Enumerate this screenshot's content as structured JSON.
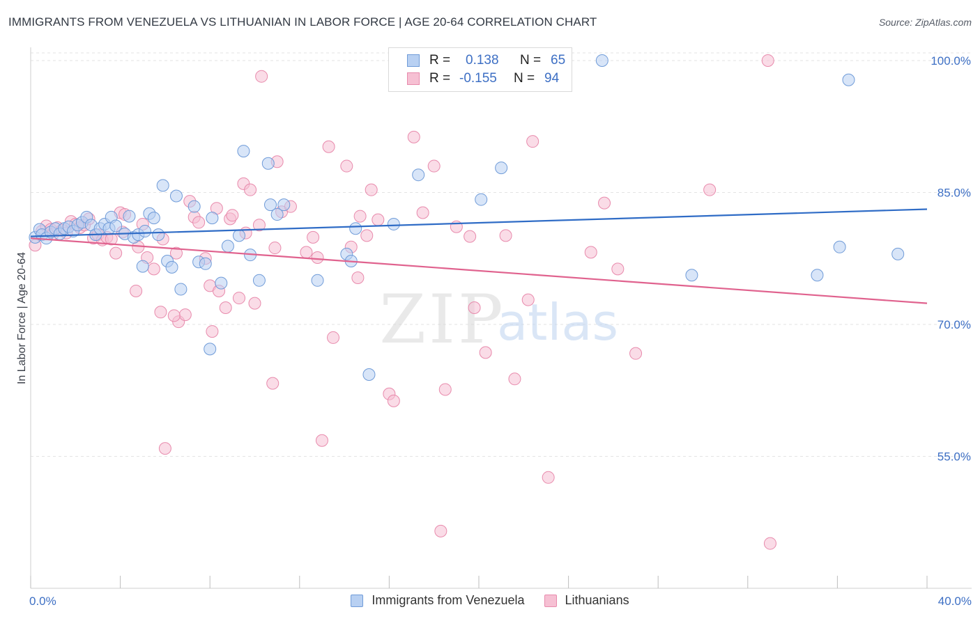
{
  "header": {
    "title": "IMMIGRANTS FROM VENEZUELA VS LITHUANIAN IN LABOR FORCE | AGE 20-64 CORRELATION CHART",
    "source": "Source: ZipAtlas.com"
  },
  "watermark": {
    "zip": "ZIP",
    "atlas": "atlas"
  },
  "legend": {
    "rows": [
      {
        "r_label": "R =",
        "r_value": "0.138",
        "n_label": "N =",
        "n_value": "65"
      },
      {
        "r_label": "R =",
        "r_value": "-0.155",
        "n_label": "N =",
        "n_value": "94"
      }
    ]
  },
  "colors": {
    "blue_fill": "#b8d0f2",
    "blue_stroke": "#6f9bd8",
    "blue_line": "#2f6cc6",
    "pink_fill": "#f6c0d3",
    "pink_stroke": "#e88aac",
    "pink_line": "#e0628e",
    "tick_text": "#3d6fc4",
    "grid": "#e3e3e3"
  },
  "chart_data": {
    "type": "scatter",
    "title": "IMMIGRANTS FROM VENEZUELA VS LITHUANIAN IN LABOR FORCE | AGE 20-64 CORRELATION CHART",
    "xlabel": "",
    "ylabel": "In Labor Force | Age 20-64",
    "xlim": [
      0,
      40
    ],
    "ylim": [
      40,
      101.5
    ],
    "x_ticks": [
      0,
      4,
      8,
      12,
      16,
      20,
      24,
      28,
      32,
      36,
      40
    ],
    "x_tick_labels": [
      {
        "value": 0,
        "label": "0.0%"
      },
      {
        "value": 40,
        "label": "40.0%"
      }
    ],
    "y_ticks": [
      {
        "value": 100,
        "label": "100.0%"
      },
      {
        "value": 85,
        "label": "85.0%"
      },
      {
        "value": 70,
        "label": "70.0%"
      },
      {
        "value": 55,
        "label": "55.0%"
      }
    ],
    "grid": true,
    "legend_position": "top-center",
    "series": [
      {
        "name": "Immigrants from Venezuela",
        "color": "#b8d0f2",
        "trend": {
          "x": [
            0,
            40
          ],
          "y": [
            80.0,
            83.1
          ]
        },
        "points": [
          [
            0.2,
            79.9
          ],
          [
            0.4,
            80.8
          ],
          [
            0.5,
            80.2
          ],
          [
            0.7,
            79.8
          ],
          [
            0.9,
            80.5
          ],
          [
            1.1,
            80.9
          ],
          [
            1.3,
            80.3
          ],
          [
            1.5,
            80.9
          ],
          [
            1.7,
            81.1
          ],
          [
            1.9,
            80.6
          ],
          [
            2.1,
            81.3
          ],
          [
            2.3,
            81.6
          ],
          [
            2.5,
            82.2
          ],
          [
            2.7,
            81.3
          ],
          [
            2.9,
            80.2
          ],
          [
            3.1,
            80.9
          ],
          [
            3.3,
            81.4
          ],
          [
            3.5,
            80.9
          ],
          [
            3.6,
            82.2
          ],
          [
            3.8,
            81.2
          ],
          [
            4.2,
            80.3
          ],
          [
            4.4,
            82.3
          ],
          [
            4.6,
            79.9
          ],
          [
            4.8,
            80.2
          ],
          [
            5.0,
            76.6
          ],
          [
            5.1,
            80.6
          ],
          [
            5.3,
            82.6
          ],
          [
            5.5,
            82.1
          ],
          [
            5.7,
            80.2
          ],
          [
            5.9,
            85.8
          ],
          [
            6.1,
            77.2
          ],
          [
            6.3,
            76.5
          ],
          [
            6.5,
            84.6
          ],
          [
            6.7,
            74.0
          ],
          [
            7.3,
            83.4
          ],
          [
            7.5,
            77.1
          ],
          [
            7.8,
            76.9
          ],
          [
            8.0,
            67.2
          ],
          [
            8.1,
            82.1
          ],
          [
            8.5,
            74.7
          ],
          [
            8.8,
            78.9
          ],
          [
            9.3,
            80.1
          ],
          [
            9.5,
            89.7
          ],
          [
            9.8,
            77.9
          ],
          [
            10.2,
            75.0
          ],
          [
            10.6,
            88.3
          ],
          [
            10.7,
            83.6
          ],
          [
            11.0,
            82.5
          ],
          [
            11.3,
            83.6
          ],
          [
            12.8,
            75.0
          ],
          [
            14.1,
            78.0
          ],
          [
            14.3,
            77.2
          ],
          [
            14.5,
            80.9
          ],
          [
            15.1,
            64.3
          ],
          [
            16.2,
            81.4
          ],
          [
            17.3,
            87.0
          ],
          [
            18.2,
            99.4
          ],
          [
            20.1,
            84.2
          ],
          [
            21.0,
            87.8
          ],
          [
            25.5,
            100.0
          ],
          [
            29.5,
            75.6
          ],
          [
            35.1,
            75.6
          ],
          [
            36.1,
            78.8
          ],
          [
            36.5,
            97.8
          ],
          [
            38.7,
            78.0
          ]
        ]
      },
      {
        "name": "Lithuanians",
        "color": "#f6c0d3",
        "trend": {
          "x": [
            0,
            40
          ],
          "y": [
            79.8,
            72.4
          ]
        },
        "points": [
          [
            0.2,
            79.0
          ],
          [
            0.5,
            80.6
          ],
          [
            0.7,
            81.2
          ],
          [
            0.9,
            80.8
          ],
          [
            1.0,
            80.3
          ],
          [
            1.2,
            81.0
          ],
          [
            1.4,
            80.7
          ],
          [
            1.6,
            80.4
          ],
          [
            1.8,
            81.7
          ],
          [
            2.0,
            81.4
          ],
          [
            2.2,
            81.0
          ],
          [
            2.4,
            81.3
          ],
          [
            2.6,
            82.0
          ],
          [
            2.8,
            79.8
          ],
          [
            3.0,
            80.2
          ],
          [
            3.2,
            79.6
          ],
          [
            3.4,
            79.9
          ],
          [
            3.6,
            79.7
          ],
          [
            3.8,
            78.1
          ],
          [
            4.0,
            82.7
          ],
          [
            4.2,
            82.5
          ],
          [
            4.7,
            73.8
          ],
          [
            4.8,
            78.8
          ],
          [
            5.0,
            81.4
          ],
          [
            5.2,
            77.6
          ],
          [
            5.5,
            76.3
          ],
          [
            5.8,
            71.4
          ],
          [
            5.9,
            79.7
          ],
          [
            6.0,
            55.9
          ],
          [
            6.5,
            78.1
          ],
          [
            6.6,
            70.3
          ],
          [
            6.9,
            71.1
          ],
          [
            7.1,
            84.0
          ],
          [
            7.3,
            82.2
          ],
          [
            7.5,
            81.6
          ],
          [
            7.8,
            77.5
          ],
          [
            8.0,
            74.4
          ],
          [
            8.1,
            69.2
          ],
          [
            8.3,
            83.2
          ],
          [
            8.4,
            73.8
          ],
          [
            8.7,
            71.9
          ],
          [
            8.9,
            82.0
          ],
          [
            9.0,
            82.4
          ],
          [
            9.3,
            73.0
          ],
          [
            9.5,
            86.0
          ],
          [
            9.6,
            80.4
          ],
          [
            9.8,
            85.3
          ],
          [
            10.0,
            72.4
          ],
          [
            10.2,
            81.3
          ],
          [
            10.3,
            98.2
          ],
          [
            10.8,
            63.3
          ],
          [
            10.9,
            78.7
          ],
          [
            11.0,
            88.5
          ],
          [
            11.2,
            82.8
          ],
          [
            11.6,
            83.4
          ],
          [
            12.3,
            78.2
          ],
          [
            12.6,
            79.9
          ],
          [
            12.8,
            77.6
          ],
          [
            13.0,
            56.8
          ],
          [
            13.3,
            90.2
          ],
          [
            13.5,
            68.5
          ],
          [
            14.1,
            88.0
          ],
          [
            14.3,
            78.8
          ],
          [
            14.6,
            75.3
          ],
          [
            15.0,
            80.1
          ],
          [
            15.2,
            85.3
          ],
          [
            15.5,
            81.9
          ],
          [
            16.0,
            62.1
          ],
          [
            16.2,
            61.3
          ],
          [
            17.1,
            91.3
          ],
          [
            17.5,
            82.7
          ],
          [
            18.0,
            88.0
          ],
          [
            18.3,
            46.5
          ],
          [
            18.5,
            62.6
          ],
          [
            19.0,
            81.1
          ],
          [
            19.6,
            80.0
          ],
          [
            19.8,
            71.9
          ],
          [
            20.3,
            66.8
          ],
          [
            21.2,
            80.1
          ],
          [
            21.6,
            63.8
          ],
          [
            22.2,
            72.8
          ],
          [
            22.4,
            90.8
          ],
          [
            23.1,
            52.6
          ],
          [
            23.6,
            100.0
          ],
          [
            25.0,
            78.2
          ],
          [
            25.6,
            83.8
          ],
          [
            26.2,
            76.3
          ],
          [
            27.0,
            66.7
          ],
          [
            30.3,
            85.3
          ],
          [
            32.9,
            100.0
          ],
          [
            33.0,
            45.1
          ],
          [
            6.4,
            71.0
          ],
          [
            14.7,
            82.3
          ],
          [
            4.1,
            80.5
          ]
        ]
      }
    ]
  }
}
